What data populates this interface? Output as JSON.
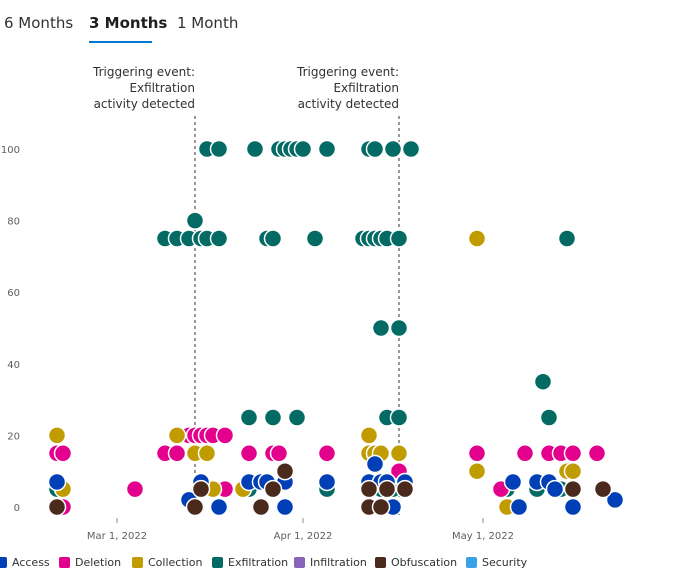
{
  "tabs": [
    {
      "label": "6 Months",
      "active": false
    },
    {
      "label": "3 Months",
      "active": true
    },
    {
      "label": "1 Month",
      "active": false
    }
  ],
  "chart_data": {
    "type": "scatter",
    "title": "",
    "xlabel": "",
    "ylabel": "",
    "x_unit": "days since Feb 19, 2022",
    "xlim": [
      0,
      101
    ],
    "ylim": [
      0,
      100
    ],
    "y_ticks": [
      "0",
      "20",
      "40",
      "60",
      "80",
      "100"
    ],
    "x_ticks": [
      {
        "label": "Mar 1, 2022",
        "x": 10
      },
      {
        "label": "Apr 1, 2022",
        "x": 41
      },
      {
        "label": "May 1, 2022",
        "x": 71
      }
    ],
    "annotations": [
      {
        "x": 23,
        "label": "Triggering event: Exfiltration activity detected",
        "lines": [
          "Triggering event:",
          "Exfiltration",
          "activity detected"
        ]
      },
      {
        "x": 57,
        "label": "Triggering event: Exfiltration activity detected",
        "lines": [
          "Triggering event:",
          "Exfiltration",
          "activity detected"
        ]
      }
    ],
    "legend": [
      {
        "name": "Access",
        "color": "#003fb5"
      },
      {
        "name": "Deletion",
        "color": "#e3008c"
      },
      {
        "name": "Collection",
        "color": "#c19c00"
      },
      {
        "name": "Exfiltration",
        "color": "#036a64"
      },
      {
        "name": "Infiltration",
        "color": "#8764b8"
      },
      {
        "name": "Obfuscation",
        "color": "#4b2a1e"
      },
      {
        "name": "Security",
        "color": "#3aa0e8"
      }
    ],
    "series": [
      {
        "name": "Exfiltration",
        "points": [
          [
            0,
            5
          ],
          [
            23,
            80
          ],
          [
            18,
            75
          ],
          [
            20,
            75
          ],
          [
            22,
            75
          ],
          [
            24,
            75
          ],
          [
            25,
            75
          ],
          [
            27,
            75
          ],
          [
            25,
            100
          ],
          [
            27,
            100
          ],
          [
            33,
            100
          ],
          [
            37,
            100
          ],
          [
            38,
            100
          ],
          [
            39,
            100
          ],
          [
            40,
            100
          ],
          [
            41,
            100
          ],
          [
            45,
            100
          ],
          [
            32,
            25
          ],
          [
            36,
            25
          ],
          [
            40,
            25
          ],
          [
            35,
            75
          ],
          [
            36,
            75
          ],
          [
            43,
            75
          ],
          [
            51,
            75
          ],
          [
            52,
            75
          ],
          [
            53,
            75
          ],
          [
            54,
            75
          ],
          [
            55,
            75
          ],
          [
            57,
            75
          ],
          [
            52,
            100
          ],
          [
            53,
            100
          ],
          [
            56,
            100
          ],
          [
            59,
            100
          ],
          [
            54,
            50
          ],
          [
            57,
            50
          ],
          [
            55,
            25
          ],
          [
            57,
            25
          ],
          [
            32,
            5
          ],
          [
            36,
            5
          ],
          [
            45,
            5
          ],
          [
            52,
            5
          ],
          [
            54,
            5
          ],
          [
            56,
            5
          ],
          [
            81,
            35
          ],
          [
            82,
            25
          ],
          [
            85,
            75
          ],
          [
            84,
            5
          ],
          [
            80,
            5
          ],
          [
            75,
            5
          ]
        ]
      },
      {
        "name": "Deletion",
        "points": [
          [
            0,
            15
          ],
          [
            1,
            15
          ],
          [
            1,
            0
          ],
          [
            13,
            5
          ],
          [
            18,
            15
          ],
          [
            20,
            15
          ],
          [
            22,
            20
          ],
          [
            23,
            20
          ],
          [
            24,
            20
          ],
          [
            25,
            20
          ],
          [
            26,
            20
          ],
          [
            28,
            20
          ],
          [
            28,
            5
          ],
          [
            32,
            15
          ],
          [
            36,
            15
          ],
          [
            37,
            15
          ],
          [
            45,
            15
          ],
          [
            52,
            15
          ],
          [
            57,
            10
          ],
          [
            52,
            5
          ],
          [
            70,
            15
          ],
          [
            74,
            5
          ],
          [
            78,
            15
          ],
          [
            82,
            15
          ],
          [
            84,
            15
          ],
          [
            86,
            15
          ],
          [
            90,
            15
          ],
          [
            91,
            5
          ]
        ]
      },
      {
        "name": "Collection",
        "points": [
          [
            0,
            20
          ],
          [
            1,
            5
          ],
          [
            20,
            20
          ],
          [
            23,
            15
          ],
          [
            25,
            15
          ],
          [
            26,
            5
          ],
          [
            31,
            5
          ],
          [
            52,
            20
          ],
          [
            52,
            15
          ],
          [
            53,
            15
          ],
          [
            54,
            15
          ],
          [
            57,
            15
          ],
          [
            70,
            75
          ],
          [
            70,
            10
          ],
          [
            75,
            0
          ],
          [
            85,
            10
          ],
          [
            86,
            10
          ]
        ]
      },
      {
        "name": "Access",
        "points": [
          [
            0,
            7
          ],
          [
            22,
            2
          ],
          [
            24,
            7
          ],
          [
            27,
            0
          ],
          [
            32,
            7
          ],
          [
            34,
            7
          ],
          [
            35,
            7
          ],
          [
            38,
            7
          ],
          [
            38,
            0
          ],
          [
            45,
            7
          ],
          [
            52,
            7
          ],
          [
            53,
            12
          ],
          [
            54,
            7
          ],
          [
            55,
            7
          ],
          [
            58,
            7
          ],
          [
            56,
            0
          ],
          [
            76,
            7
          ],
          [
            77,
            0
          ],
          [
            80,
            7
          ],
          [
            82,
            7
          ],
          [
            83,
            5
          ],
          [
            86,
            0
          ],
          [
            93,
            2
          ]
        ]
      },
      {
        "name": "Obfuscation",
        "points": [
          [
            0,
            0
          ],
          [
            23,
            0
          ],
          [
            24,
            5
          ],
          [
            34,
            0
          ],
          [
            38,
            10
          ],
          [
            36,
            5
          ],
          [
            52,
            0
          ],
          [
            52,
            5
          ],
          [
            54,
            0
          ],
          [
            55,
            5
          ],
          [
            58,
            5
          ],
          [
            86,
            5
          ],
          [
            91,
            5
          ]
        ]
      },
      {
        "name": "Infiltration",
        "points": []
      },
      {
        "name": "Security",
        "points": []
      }
    ]
  }
}
